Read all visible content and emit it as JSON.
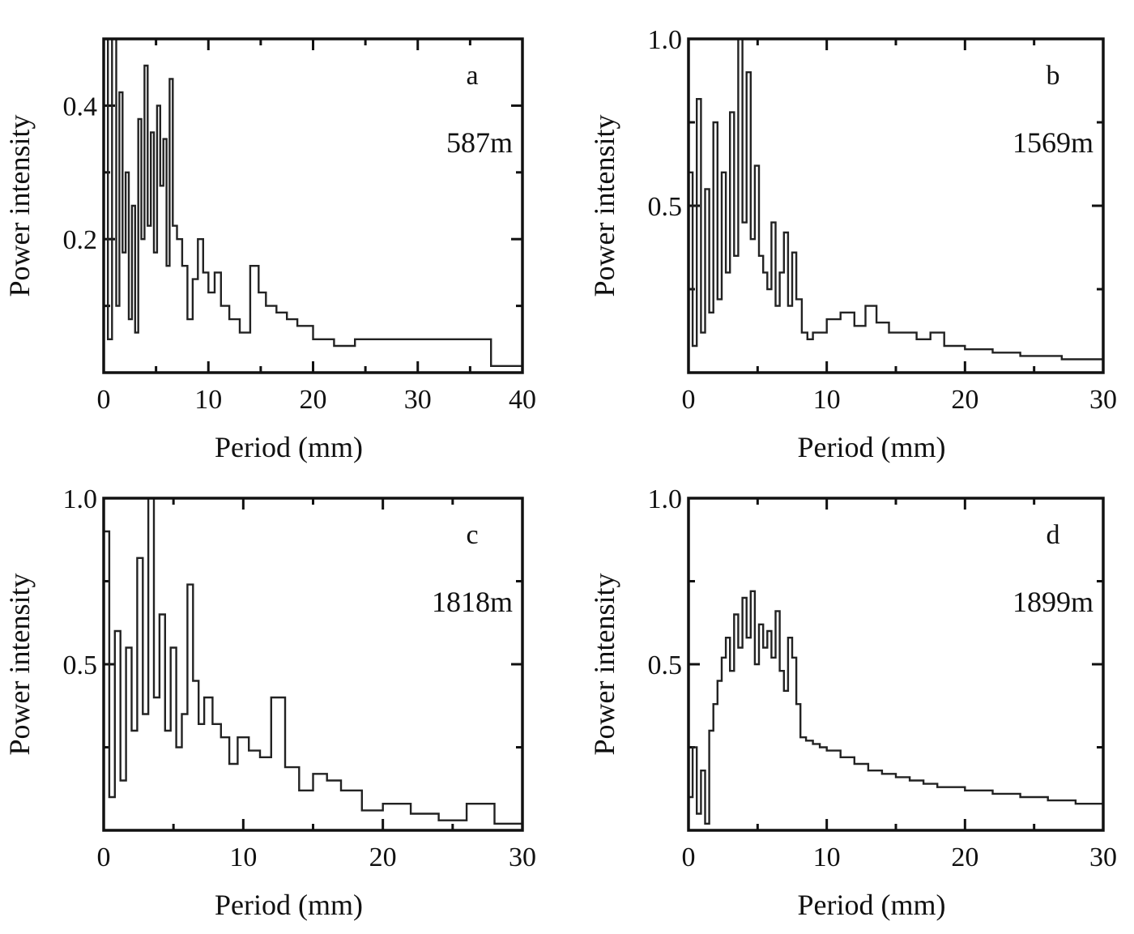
{
  "chart_data": [
    {
      "type": "line",
      "panel": "a",
      "annotation": "587m",
      "xlabel": "Period (mm)",
      "ylabel": "Power intensity",
      "xlim": [
        0,
        40
      ],
      "ylim": [
        0,
        0.5
      ],
      "xticks": [
        0,
        10,
        20,
        30,
        40
      ],
      "xtick_labels": [
        "0",
        "10",
        "20",
        "30",
        "40"
      ],
      "yticks": [
        0.2,
        0.4
      ],
      "ytick_labels": [
        "0.2",
        "0.4"
      ],
      "series": [
        {
          "step": true,
          "x": [
            0,
            0.4,
            0.8,
            1.2,
            1.5,
            1.8,
            2.1,
            2.4,
            2.7,
            3.0,
            3.3,
            3.6,
            3.9,
            4.2,
            4.5,
            4.8,
            5.1,
            5.4,
            5.7,
            6.0,
            6.3,
            6.6,
            7.0,
            7.5,
            8.0,
            8.5,
            9.0,
            9.5,
            10.0,
            10.6,
            11.2,
            12.0,
            13.0,
            14.0,
            14.8,
            15.5,
            16.5,
            17.5,
            18.5,
            20.0,
            22.0,
            24.0,
            26.5,
            29.5,
            33.0,
            37.0,
            40.0
          ],
          "y": [
            0.5,
            0.05,
            0.5,
            0.1,
            0.42,
            0.18,
            0.3,
            0.08,
            0.25,
            0.06,
            0.38,
            0.2,
            0.46,
            0.22,
            0.36,
            0.18,
            0.4,
            0.28,
            0.35,
            0.16,
            0.44,
            0.22,
            0.2,
            0.16,
            0.08,
            0.14,
            0.2,
            0.15,
            0.12,
            0.15,
            0.1,
            0.08,
            0.06,
            0.16,
            0.12,
            0.1,
            0.09,
            0.08,
            0.07,
            0.05,
            0.04,
            0.05,
            0.05,
            0.05,
            0.05,
            0.01,
            0.01
          ]
        }
      ]
    },
    {
      "type": "line",
      "panel": "b",
      "annotation": "1569m",
      "xlabel": "Period (mm)",
      "ylabel": "Power intensity",
      "xlim": [
        0,
        30
      ],
      "ylim": [
        0,
        1.0
      ],
      "xticks": [
        0,
        10,
        20,
        30
      ],
      "xtick_labels": [
        "0",
        "10",
        "20",
        "30"
      ],
      "yticks": [
        0.5,
        1.0
      ],
      "ytick_labels": [
        "0.5",
        "1.0"
      ],
      "series": [
        {
          "step": true,
          "x": [
            0,
            0.3,
            0.6,
            0.9,
            1.2,
            1.5,
            1.8,
            2.1,
            2.4,
            2.7,
            3.0,
            3.3,
            3.6,
            3.9,
            4.2,
            4.5,
            4.8,
            5.1,
            5.4,
            5.7,
            6.0,
            6.3,
            6.6,
            6.9,
            7.2,
            7.5,
            7.8,
            8.2,
            8.6,
            9.0,
            10.0,
            11.0,
            12.0,
            12.8,
            13.6,
            14.5,
            15.5,
            16.5,
            17.5,
            18.5,
            20.0,
            22.0,
            24.0,
            27.0,
            30.0
          ],
          "y": [
            0.6,
            0.08,
            0.82,
            0.12,
            0.55,
            0.18,
            0.75,
            0.22,
            0.6,
            0.3,
            0.78,
            0.35,
            1.0,
            0.45,
            0.9,
            0.4,
            0.62,
            0.35,
            0.3,
            0.25,
            0.45,
            0.2,
            0.3,
            0.42,
            0.2,
            0.36,
            0.22,
            0.12,
            0.1,
            0.12,
            0.16,
            0.18,
            0.14,
            0.2,
            0.15,
            0.12,
            0.12,
            0.1,
            0.12,
            0.08,
            0.07,
            0.06,
            0.05,
            0.04,
            0.04
          ]
        }
      ]
    },
    {
      "type": "line",
      "panel": "c",
      "annotation": "1818m",
      "xlabel": "Period (mm)",
      "ylabel": "Power intensity",
      "xlim": [
        0,
        30
      ],
      "ylim": [
        0,
        1.0
      ],
      "xticks": [
        0,
        10,
        20,
        30
      ],
      "xtick_labels": [
        "0",
        "10",
        "20",
        "30"
      ],
      "yticks": [
        0.5,
        1.0
      ],
      "ytick_labels": [
        "0.5",
        "1.0"
      ],
      "series": [
        {
          "step": true,
          "x": [
            0,
            0.4,
            0.8,
            1.2,
            1.6,
            2.0,
            2.4,
            2.8,
            3.2,
            3.6,
            4.0,
            4.4,
            4.8,
            5.2,
            5.6,
            6.0,
            6.4,
            6.8,
            7.2,
            7.8,
            8.4,
            9.0,
            9.6,
            10.4,
            11.2,
            12.0,
            13.0,
            14.0,
            15.0,
            16.0,
            17.0,
            18.5,
            20.0,
            22.0,
            24.0,
            26.0,
            28.0,
            30.0
          ],
          "y": [
            0.9,
            0.1,
            0.6,
            0.15,
            0.55,
            0.3,
            0.82,
            0.35,
            1.0,
            0.4,
            0.65,
            0.3,
            0.55,
            0.25,
            0.35,
            0.74,
            0.45,
            0.32,
            0.4,
            0.32,
            0.28,
            0.2,
            0.28,
            0.24,
            0.22,
            0.4,
            0.19,
            0.12,
            0.17,
            0.15,
            0.12,
            0.06,
            0.08,
            0.05,
            0.03,
            0.08,
            0.02,
            0.02
          ]
        }
      ]
    },
    {
      "type": "line",
      "panel": "d",
      "annotation": "1899m",
      "xlabel": "Period (mm)",
      "ylabel": "Power intensity",
      "xlim": [
        0,
        30
      ],
      "ylim": [
        0,
        1.0
      ],
      "xticks": [
        0,
        10,
        20,
        30
      ],
      "xtick_labels": [
        "0",
        "10",
        "20",
        "30"
      ],
      "yticks": [
        0.5,
        1.0
      ],
      "ytick_labels": [
        "0.5",
        "1.0"
      ],
      "series": [
        {
          "step": true,
          "x": [
            0,
            0.3,
            0.6,
            0.9,
            1.2,
            1.5,
            1.8,
            2.1,
            2.4,
            2.7,
            3.0,
            3.3,
            3.6,
            3.9,
            4.2,
            4.5,
            4.8,
            5.1,
            5.4,
            5.7,
            6.0,
            6.3,
            6.6,
            6.9,
            7.2,
            7.5,
            7.8,
            8.1,
            8.5,
            9.0,
            9.5,
            10.0,
            11.0,
            12.0,
            13.0,
            14.0,
            15.0,
            16.0,
            17.0,
            18.0,
            20.0,
            22.0,
            24.0,
            26.0,
            28.0,
            30.0
          ],
          "y": [
            0.1,
            0.25,
            0.05,
            0.18,
            0.02,
            0.3,
            0.38,
            0.45,
            0.52,
            0.58,
            0.48,
            0.65,
            0.55,
            0.7,
            0.58,
            0.72,
            0.5,
            0.62,
            0.55,
            0.6,
            0.52,
            0.66,
            0.48,
            0.42,
            0.58,
            0.52,
            0.38,
            0.28,
            0.27,
            0.26,
            0.25,
            0.24,
            0.22,
            0.2,
            0.18,
            0.17,
            0.16,
            0.15,
            0.14,
            0.13,
            0.12,
            0.11,
            0.1,
            0.09,
            0.08,
            0.08
          ]
        }
      ]
    }
  ]
}
